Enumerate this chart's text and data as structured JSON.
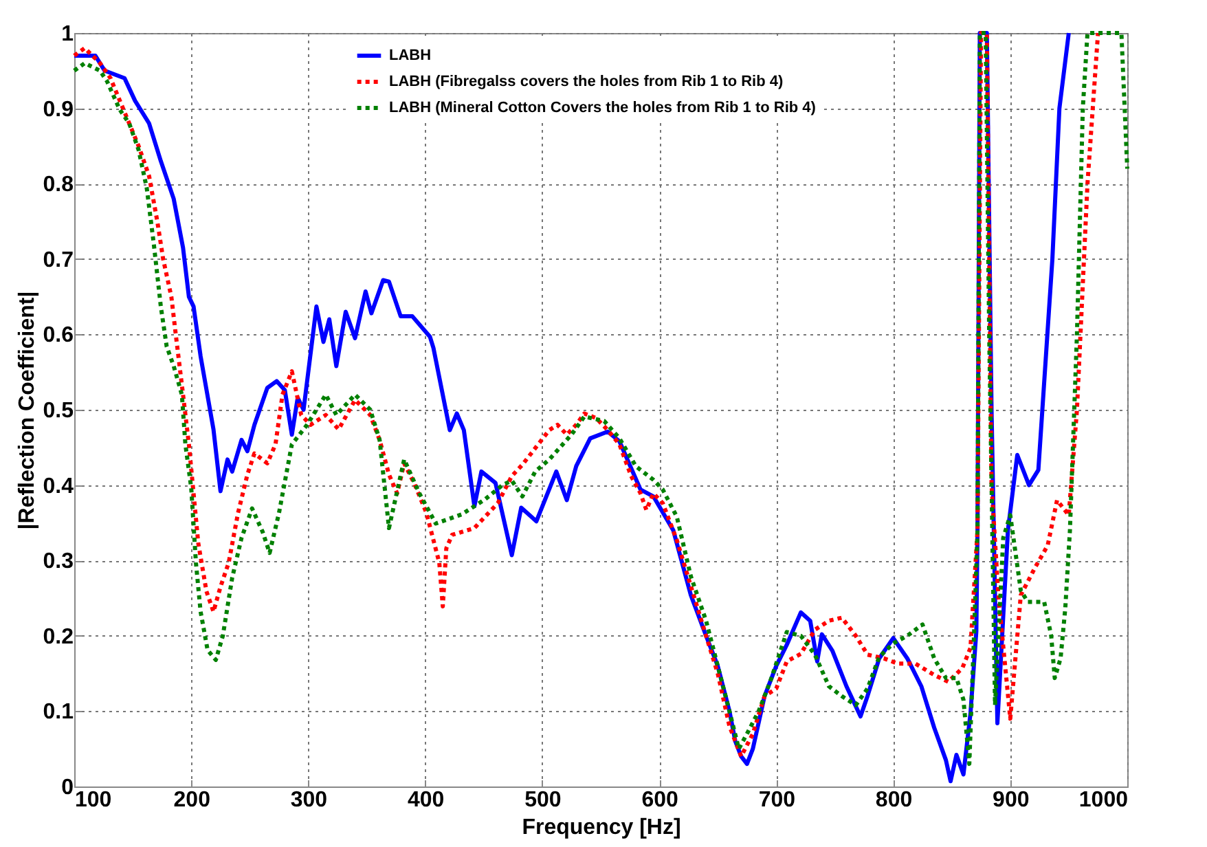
{
  "chart_data": {
    "type": "line",
    "xlabel": "Frequency [Hz]",
    "ylabel": "|Reflection Coefficient|",
    "xlim": [
      100,
      1000
    ],
    "xticks": [
      100,
      200,
      300,
      400,
      500,
      600,
      700,
      800,
      900,
      1000
    ],
    "ylim": [
      0,
      1
    ],
    "yticks": [
      0,
      0.1,
      0.2,
      0.3,
      0.4,
      0.5,
      0.6,
      0.7,
      0.8,
      0.9,
      1
    ],
    "grid": true,
    "legend": "top right",
    "series": [
      {
        "name": "LABH",
        "color": "#0000ff",
        "line_style": "solid",
        "x": [
          100,
          109,
          118,
          126,
          143,
          152,
          164,
          174,
          185,
          193,
          198,
          202,
          208,
          219,
          225,
          231,
          235,
          243,
          248,
          254,
          265,
          273,
          280,
          286,
          291,
          296,
          307,
          313,
          318,
          324,
          332,
          340,
          349,
          354,
          364,
          369,
          379,
          389,
          404,
          407,
          421,
          427,
          433,
          442,
          448,
          460,
          474,
          482,
          495,
          512,
          521,
          529,
          541,
          556,
          566,
          584,
          595,
          612,
          627,
          640,
          650,
          660,
          665,
          670,
          675,
          680,
          690,
          700,
          709,
          721,
          729,
          735,
          739,
          748,
          760,
          772,
          778,
          788,
          800,
          812,
          824,
          835,
          845,
          849,
          854,
          860,
          866,
          871,
          872,
          874,
          880,
          884,
          889,
          898,
          906,
          916,
          924,
          936,
          942,
          950
        ],
        "values": [
          0.97,
          0.97,
          0.97,
          0.95,
          0.94,
          0.91,
          0.88,
          0.83,
          0.78,
          0.715,
          0.65,
          0.637,
          0.571,
          0.474,
          0.392,
          0.434,
          0.418,
          0.46,
          0.445,
          0.48,
          0.529,
          0.538,
          0.526,
          0.467,
          0.516,
          0.5,
          0.637,
          0.59,
          0.62,
          0.558,
          0.63,
          0.595,
          0.657,
          0.628,
          0.672,
          0.67,
          0.624,
          0.624,
          0.597,
          0.582,
          0.473,
          0.495,
          0.473,
          0.372,
          0.418,
          0.403,
          0.307,
          0.37,
          0.352,
          0.418,
          0.38,
          0.425,
          0.462,
          0.471,
          0.458,
          0.394,
          0.385,
          0.34,
          0.254,
          0.2,
          0.16,
          0.1,
          0.06,
          0.04,
          0.03,
          0.05,
          0.12,
          0.16,
          0.188,
          0.231,
          0.22,
          0.166,
          0.202,
          0.18,
          0.133,
          0.093,
          0.12,
          0.17,
          0.197,
          0.17,
          0.133,
          0.078,
          0.035,
          0.007,
          0.042,
          0.016,
          0.097,
          0.206,
          0.34,
          1,
          1,
          0.5,
          0.084,
          0.34,
          0.44,
          0.4,
          0.42,
          0.7,
          0.9,
          1
        ]
      },
      {
        "name": "LABH (Fibregalss covers the holes from Rib 1 to Rib 4)",
        "color": "#ff0000",
        "line_style": "dotted",
        "x": [
          100,
          109,
          122,
          131,
          139,
          147,
          155,
          164,
          171,
          176,
          183,
          187,
          193,
          198,
          202,
          206,
          213,
          219,
          225,
          232,
          240,
          248,
          254,
          265,
          272,
          278,
          286,
          294,
          302,
          315,
          326,
          340,
          353,
          361,
          369,
          376,
          382,
          391,
          401,
          412,
          415,
          418,
          423,
          442,
          462,
          474,
          483,
          494,
          506,
          513,
          521,
          529,
          536,
          546,
          556,
          566,
          576,
          584,
          589,
          595,
          603,
          615,
          627,
          640,
          650,
          660,
          670,
          680,
          690,
          700,
          709,
          721,
          733,
          745,
          756,
          768,
          778,
          792,
          804,
          819,
          835,
          847,
          859,
          866,
          872,
          875,
          880,
          884,
          890,
          900,
          909,
          921,
          932,
          940,
          950,
          957,
          966,
          975
        ],
        "values": [
          0.97,
          0.98,
          0.96,
          0.94,
          0.91,
          0.88,
          0.85,
          0.81,
          0.75,
          0.7,
          0.65,
          0.597,
          0.52,
          0.454,
          0.389,
          0.323,
          0.259,
          0.232,
          0.265,
          0.297,
          0.363,
          0.414,
          0.442,
          0.429,
          0.454,
          0.52,
          0.551,
          0.493,
          0.48,
          0.493,
          0.474,
          0.513,
          0.493,
          0.46,
          0.414,
          0.389,
          0.429,
          0.401,
          0.363,
          0.297,
          0.239,
          0.316,
          0.334,
          0.343,
          0.376,
          0.412,
          0.427,
          0.449,
          0.473,
          0.48,
          0.467,
          0.48,
          0.495,
          0.489,
          0.473,
          0.454,
          0.412,
          0.389,
          0.367,
          0.389,
          0.376,
          0.327,
          0.266,
          0.2,
          0.15,
          0.08,
          0.04,
          0.07,
          0.12,
          0.13,
          0.166,
          0.176,
          0.208,
          0.22,
          0.224,
          0.2,
          0.175,
          0.17,
          0.163,
          0.163,
          0.148,
          0.139,
          0.157,
          0.184,
          0.34,
          1,
          1,
          0.4,
          0.25,
          0.09,
          0.254,
          0.29,
          0.32,
          0.38,
          0.36,
          0.5,
          0.8,
          1
        ]
      },
      {
        "name": "LABH (Mineral Cotton Covers the holes from Rib 1 to Rib 4)",
        "color": "#008000",
        "line_style": "dotted",
        "x": [
          100,
          109,
          122,
          128,
          139,
          147,
          155,
          162,
          168,
          174,
          179,
          185,
          192,
          195,
          200,
          204,
          208,
          214,
          221,
          227,
          235,
          243,
          252,
          261,
          267,
          275,
          286,
          299,
          315,
          324,
          340,
          353,
          361,
          369,
          382,
          395,
          409,
          431,
          451,
          466,
          474,
          483,
          494,
          506,
          525,
          536,
          553,
          566,
          580,
          595,
          603,
          615,
          627,
          640,
          650,
          660,
          668,
          675,
          685,
          695,
          709,
          721,
          733,
          745,
          756,
          768,
          778,
          788,
          800,
          812,
          825,
          835,
          845,
          854,
          860,
          865,
          869,
          872,
          874,
          879,
          882,
          887,
          894,
          900,
          909,
          915,
          929,
          935,
          938,
          943,
          947,
          951,
          957,
          962,
          966,
          995,
          1000
        ],
        "values": [
          0.95,
          0.96,
          0.95,
          0.936,
          0.898,
          0.88,
          0.845,
          0.794,
          0.72,
          0.637,
          0.584,
          0.558,
          0.52,
          0.454,
          0.396,
          0.297,
          0.232,
          0.181,
          0.168,
          0.2,
          0.277,
          0.33,
          0.369,
          0.338,
          0.31,
          0.363,
          0.454,
          0.48,
          0.52,
          0.493,
          0.52,
          0.5,
          0.46,
          0.343,
          0.434,
          0.389,
          0.349,
          0.361,
          0.381,
          0.4,
          0.406,
          0.385,
          0.418,
          0.434,
          0.467,
          0.491,
          0.485,
          0.462,
          0.425,
          0.407,
          0.394,
          0.358,
          0.279,
          0.22,
          0.16,
          0.1,
          0.05,
          0.07,
          0.1,
          0.14,
          0.205,
          0.2,
          0.175,
          0.133,
          0.12,
          0.108,
          0.13,
          0.172,
          0.19,
          0.2,
          0.215,
          0.17,
          0.144,
          0.144,
          0.115,
          0.03,
          0.2,
          0.34,
          1,
          1,
          0.6,
          0.108,
          0.33,
          0.36,
          0.26,
          0.245,
          0.245,
          0.2,
          0.144,
          0.17,
          0.236,
          0.34,
          0.6,
          0.9,
          1,
          1,
          0.82
        ]
      }
    ]
  }
}
